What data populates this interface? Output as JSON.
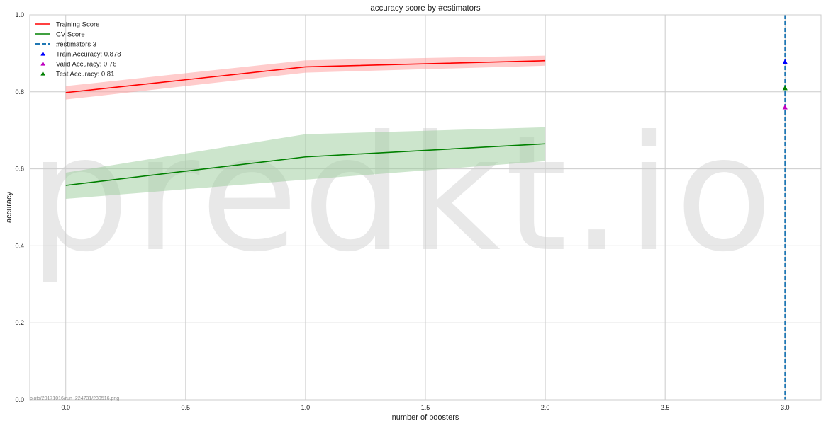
{
  "chart_data": {
    "type": "line",
    "title": "accuracy score by #estimators",
    "xlabel": "number of boosters",
    "ylabel": "accuracy",
    "xlim": [
      -0.15,
      3.15
    ],
    "ylim": [
      0.0,
      1.0
    ],
    "xticks": [
      0.0,
      0.5,
      1.0,
      1.5,
      2.0,
      2.5,
      3.0
    ],
    "xtick_labels": [
      "0.0",
      "0.5",
      "1.0",
      "1.5",
      "2.0",
      "2.5",
      "3.0"
    ],
    "yticks": [
      0.0,
      0.2,
      0.4,
      0.6,
      0.8,
      1.0
    ],
    "ytick_labels": [
      "0.0",
      "0.2",
      "0.4",
      "0.6",
      "0.8",
      "1.0"
    ],
    "grid": true,
    "legend_position": "top-left",
    "series": [
      {
        "name": "Training Score",
        "color": "#ff0000",
        "band_color": "#ff9999",
        "x": [
          0,
          1,
          2
        ],
        "values": [
          0.798,
          0.865,
          0.881
        ],
        "lower": [
          0.78,
          0.85,
          0.868
        ],
        "upper": [
          0.815,
          0.882,
          0.894
        ]
      },
      {
        "name": "CV Score",
        "color": "#008000",
        "band_color": "#99cc99",
        "x": [
          0,
          1,
          2
        ],
        "values": [
          0.557,
          0.631,
          0.665
        ],
        "lower": [
          0.522,
          0.572,
          0.62
        ],
        "upper": [
          0.59,
          0.69,
          0.708
        ]
      }
    ],
    "vline": {
      "name": "#estimators 3",
      "x": 3.0,
      "color": "#1f77b4"
    },
    "markers": [
      {
        "name": "Train Accuracy: 0.878",
        "x": 3.0,
        "y": 0.878,
        "color": "#0000ff"
      },
      {
        "name": "Valid Accuracy: 0.76",
        "x": 3.0,
        "y": 0.76,
        "color": "#bf00bf"
      },
      {
        "name": "Test Accuracy: 0.81",
        "x": 3.0,
        "y": 0.81,
        "color": "#008000"
      }
    ]
  },
  "watermark": "predkt.io",
  "footnote": "plots/20171016/run_224731/230516.png"
}
